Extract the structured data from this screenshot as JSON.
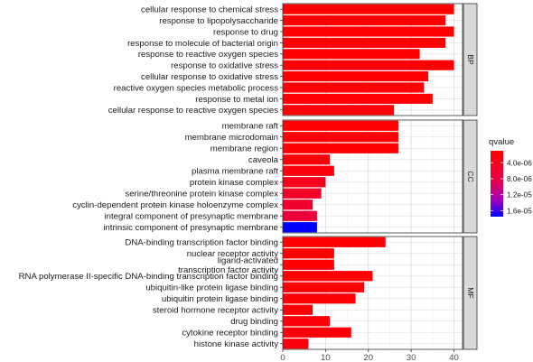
{
  "chart_data": {
    "type": "bar",
    "orientation": "horizontal",
    "xlim": [
      0,
      42
    ],
    "x_ticks": [
      0,
      10,
      20,
      30,
      40
    ],
    "grid": true,
    "legend_position": "right",
    "legend": {
      "title": "qvalue",
      "labels": [
        "4.0e-06",
        "8.0e-06",
        "1.2e-05",
        "1.6e-05"
      ],
      "values": [
        4e-06,
        8e-06,
        1.2e-05,
        1.6e-05
      ],
      "range": [
        1e-06,
        1.75e-05
      ],
      "colors": {
        "low": "#ff0000",
        "high": "#0000ff"
      }
    },
    "panels": [
      {
        "strip": "BP",
        "bars": [
          {
            "label": "cellular response to chemical stress",
            "value": 40,
            "qvalue": 1e-06
          },
          {
            "label": "response to lipopolysaccharide",
            "value": 38,
            "qvalue": 1.1e-06
          },
          {
            "label": "response to drug",
            "value": 40,
            "qvalue": 1.1e-06
          },
          {
            "label": "response to molecule of bacterial origin",
            "value": 38,
            "qvalue": 1.1e-06
          },
          {
            "label": "response to reactive oxygen species",
            "value": 32,
            "qvalue": 1.2e-06
          },
          {
            "label": "response to oxidative stress",
            "value": 40,
            "qvalue": 1.2e-06
          },
          {
            "label": "cellular response to oxidative stress",
            "value": 34,
            "qvalue": 1.2e-06
          },
          {
            "label": "reactive oxygen species metabolic process",
            "value": 33,
            "qvalue": 1.3e-06
          },
          {
            "label": "response to metal ion",
            "value": 35,
            "qvalue": 1.3e-06
          },
          {
            "label": "cellular response to reactive oxygen species",
            "value": 26,
            "qvalue": 1.4e-06
          }
        ]
      },
      {
        "strip": "CC",
        "bars": [
          {
            "label": "membrane raft",
            "value": 27,
            "qvalue": 1e-06
          },
          {
            "label": "membrane microdomain",
            "value": 27,
            "qvalue": 1e-06
          },
          {
            "label": "membrane region",
            "value": 27,
            "qvalue": 1.2e-06
          },
          {
            "label": "caveola",
            "value": 11,
            "qvalue": 2e-06
          },
          {
            "label": "plasma membrane raft",
            "value": 12,
            "qvalue": 2.2e-06
          },
          {
            "label": "protein kinase complex",
            "value": 10,
            "qvalue": 4e-06
          },
          {
            "label": "serine/threonine protein kinase complex",
            "value": 9,
            "qvalue": 5e-06
          },
          {
            "label": "cyclin-dependent protein kinase holoenzyme complex",
            "value": 7,
            "qvalue": 5.5e-06
          },
          {
            "label": "integral component of presynaptic membrane",
            "value": 8,
            "qvalue": 7e-06
          },
          {
            "label": "intrinsic component of presynaptic membrane",
            "value": 8,
            "qvalue": 1.75e-05
          }
        ]
      },
      {
        "strip": "MF",
        "bars": [
          {
            "label": "DNA-binding transcription factor binding",
            "value": 24,
            "qvalue": 1e-06
          },
          {
            "label": "nuclear receptor activity",
            "value": 12,
            "qvalue": 1.2e-06
          },
          {
            "label": "ligand-activated\ntranscription factor activity",
            "value": 12,
            "qvalue": 1.2e-06
          },
          {
            "label": "RNA polymerase II-specific DNA-binding transcription factor binding",
            "value": 21,
            "qvalue": 1.3e-06
          },
          {
            "label": "ubiquitin-like protein ligase binding",
            "value": 19,
            "qvalue": 1.4e-06
          },
          {
            "label": "ubiquitin protein ligase binding",
            "value": 17,
            "qvalue": 1.5e-06
          },
          {
            "label": "steroid hormone receptor activity",
            "value": 7,
            "qvalue": 1.6e-06
          },
          {
            "label": "drug binding",
            "value": 11,
            "qvalue": 1.8e-06
          },
          {
            "label": "cytokine receptor binding",
            "value": 16,
            "qvalue": 2e-06
          },
          {
            "label": "histone kinase activity",
            "value": 6,
            "qvalue": 2.2e-06
          }
        ]
      }
    ]
  }
}
